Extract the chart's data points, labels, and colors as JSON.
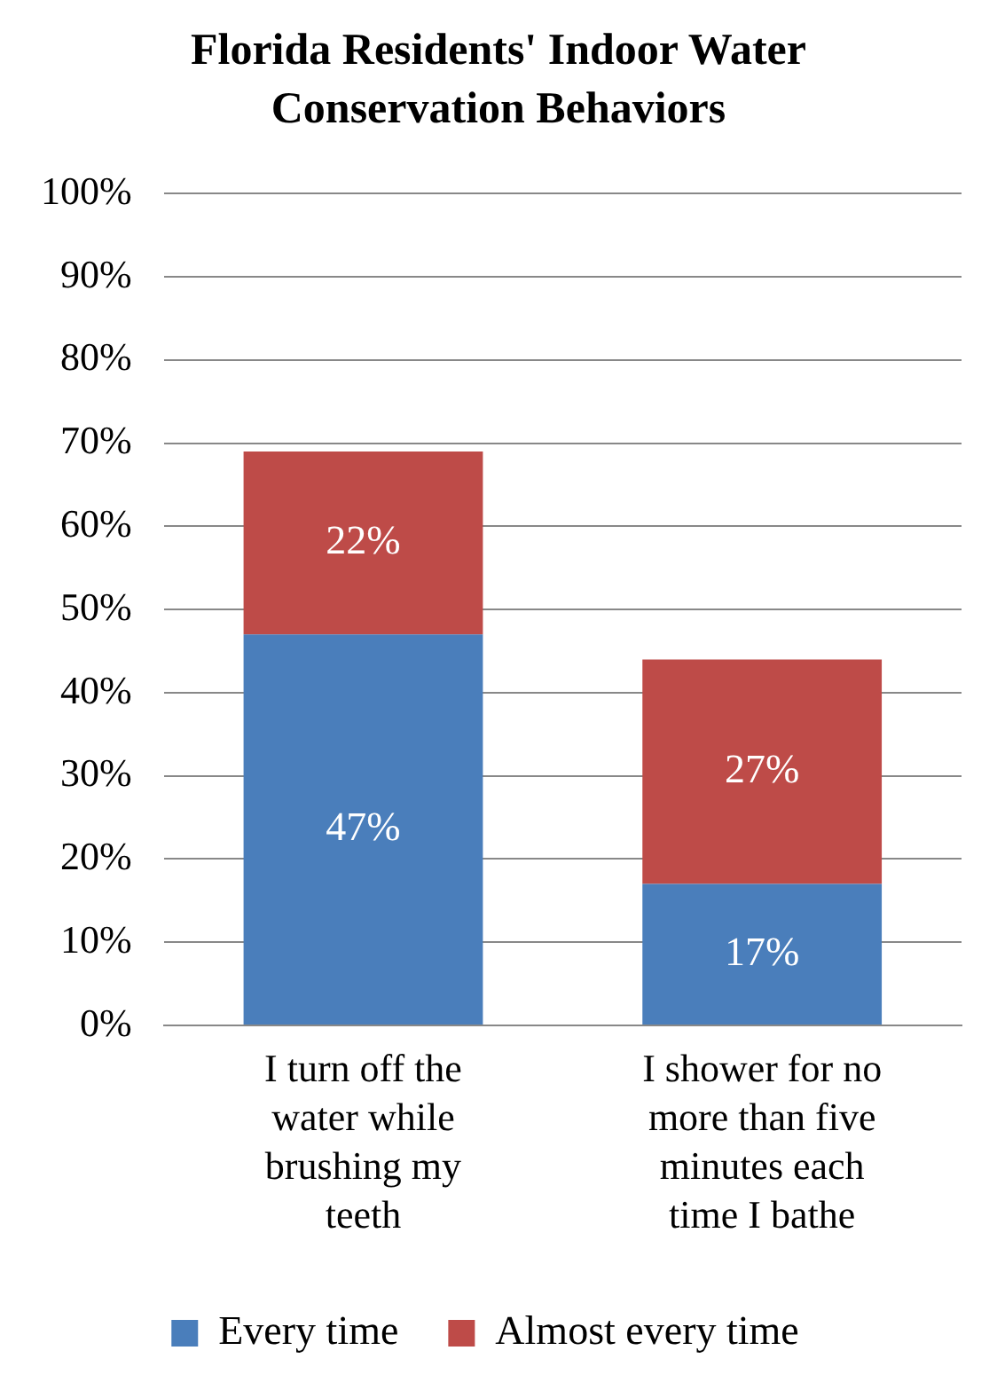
{
  "chart_data": {
    "type": "bar",
    "title": "Florida Residents' Indoor Water Conservation Behaviors",
    "categories": [
      "I turn off the water while brushing my teeth",
      "I shower for no more than five minutes each time I bathe"
    ],
    "series": [
      {
        "name": "Every time",
        "color": "#4a7ebb",
        "values": [
          47,
          17
        ],
        "value_labels": [
          "47%",
          "17%"
        ]
      },
      {
        "name": "Almost every time",
        "color": "#be4b48",
        "values": [
          22,
          27
        ],
        "value_labels": [
          "22%",
          "27%"
        ]
      }
    ],
    "stacked": true,
    "ylim": [
      0,
      100
    ],
    "yticks": [
      {
        "value": 0,
        "label": "0%"
      },
      {
        "value": 10,
        "label": "10%"
      },
      {
        "value": 20,
        "label": "20%"
      },
      {
        "value": 30,
        "label": "30%"
      },
      {
        "value": 40,
        "label": "40%"
      },
      {
        "value": 50,
        "label": "50%"
      },
      {
        "value": 60,
        "label": "60%"
      },
      {
        "value": 70,
        "label": "70%"
      },
      {
        "value": 80,
        "label": "80%"
      },
      {
        "value": 90,
        "label": "90%"
      },
      {
        "value": 100,
        "label": "100%"
      }
    ],
    "grid": "y",
    "legend": "bottom"
  }
}
